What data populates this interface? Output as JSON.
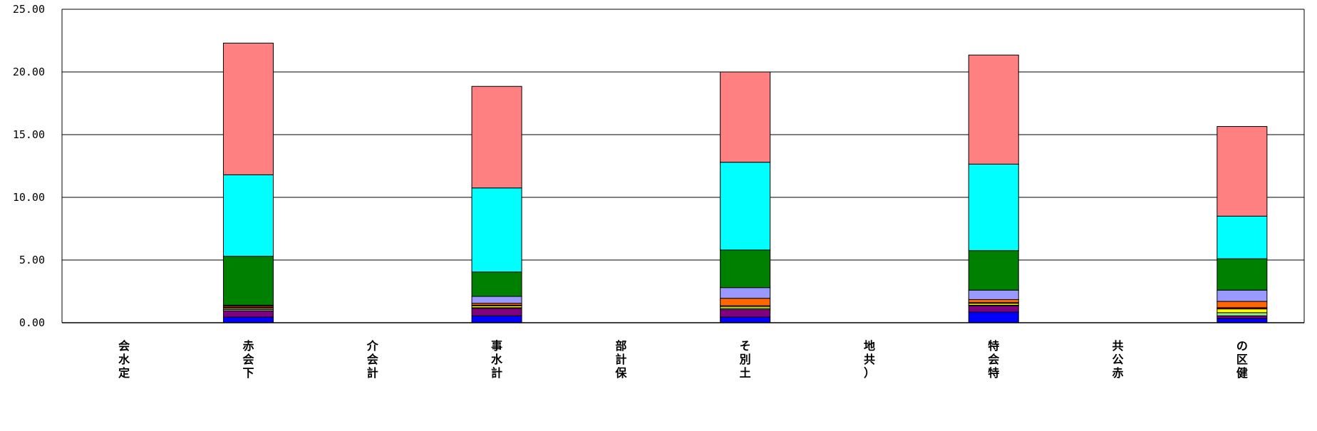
{
  "chart_data": {
    "type": "bar",
    "stacked": true,
    "ylim": [
      0,
      25
    ],
    "yticks": [
      "0.00",
      "5.00",
      "10.00",
      "15.00",
      "20.00",
      "25.00"
    ],
    "ytick_values": [
      0,
      5,
      10,
      15,
      20,
      25
    ],
    "grid": true,
    "legend": "none",
    "categories": [
      [
        "会",
        "水",
        "定"
      ],
      [
        "赤",
        "会",
        "下"
      ],
      [
        "介",
        "会",
        "計"
      ],
      [
        "事",
        "水",
        "計"
      ],
      [
        "部",
        "計",
        "保"
      ],
      [
        "そ",
        "別",
        "土"
      ],
      [
        "地",
        "共",
        "）"
      ],
      [
        "特",
        "会",
        "特"
      ],
      [
        "共",
        "公",
        "赤"
      ],
      [
        "の",
        "区",
        "健"
      ]
    ],
    "series": [
      {
        "color": "#0000ff",
        "values": [
          0,
          0.45,
          0,
          0.55,
          0,
          0.45,
          0,
          0.85,
          0,
          0.35
        ]
      },
      {
        "color": "#800080",
        "values": [
          0,
          0.5,
          0,
          0.6,
          0,
          0.6,
          0,
          0.5,
          0,
          0.2
        ]
      },
      {
        "color": "#90ee90",
        "values": [
          0,
          0.1,
          0,
          0.05,
          0,
          0.1,
          0,
          0.05,
          0,
          0.25
        ]
      },
      {
        "color": "#ffff00",
        "values": [
          0,
          0.1,
          0,
          0.15,
          0,
          0.15,
          0,
          0.15,
          0,
          0.3
        ]
      },
      {
        "color": "#800000",
        "values": [
          0,
          0.1,
          0,
          0.05,
          0,
          0.05,
          0,
          0.05,
          0,
          0.1
        ]
      },
      {
        "color": "#ff6600",
        "values": [
          0,
          0.1,
          0,
          0.15,
          0,
          0.6,
          0,
          0.25,
          0,
          0.5
        ]
      },
      {
        "color": "#9999ff",
        "values": [
          0,
          0.05,
          0,
          0.55,
          0,
          0.85,
          0,
          0.75,
          0,
          0.9
        ]
      },
      {
        "color": "#008000",
        "values": [
          0,
          3.9,
          0,
          1.95,
          0,
          3.0,
          0,
          3.15,
          0,
          2.5
        ]
      },
      {
        "color": "#00ffff",
        "values": [
          0,
          6.5,
          0,
          6.7,
          0,
          7.0,
          0,
          6.9,
          0,
          3.4
        ]
      },
      {
        "color": "#ff8080",
        "values": [
          0,
          10.5,
          0,
          8.1,
          0,
          7.2,
          0,
          8.7,
          0,
          7.15
        ]
      }
    ]
  }
}
